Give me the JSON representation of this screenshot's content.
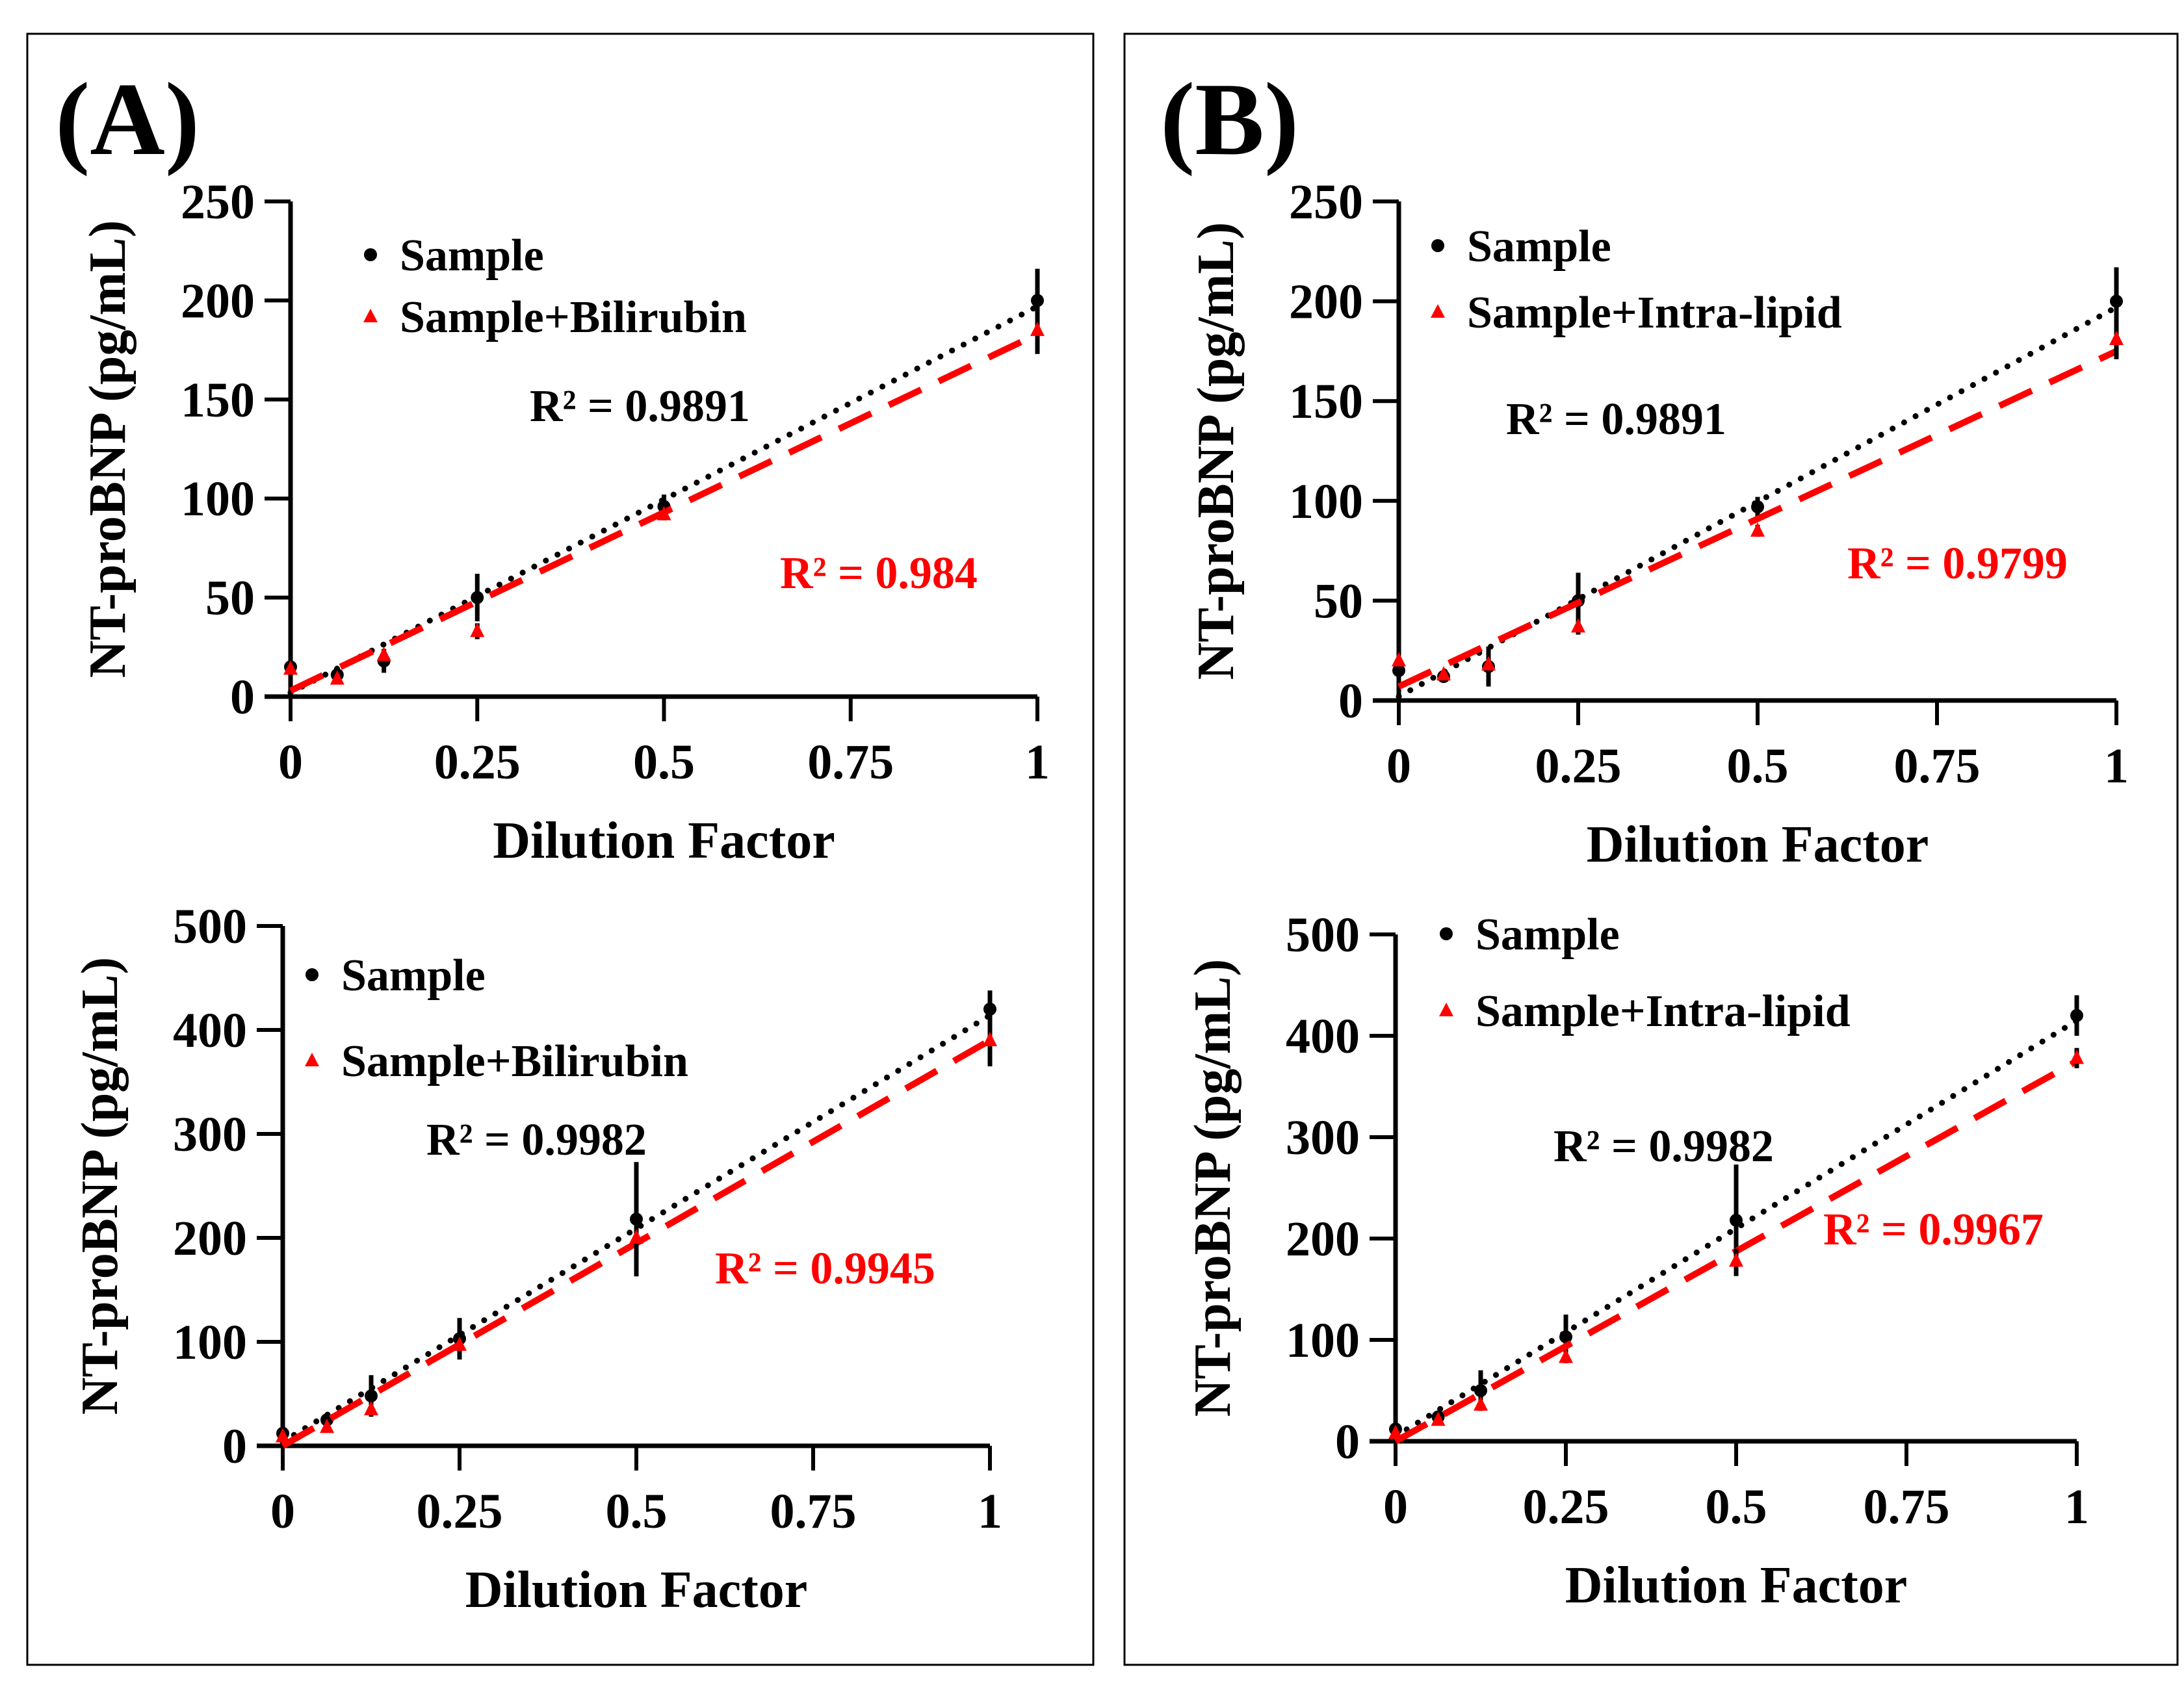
{
  "panels": [
    {
      "label": "(A)"
    },
    {
      "label": "(B)"
    }
  ],
  "colors": {
    "sample": "#000000",
    "spiked": "#ff0000",
    "frame": "#000000"
  },
  "chart_data": [
    {
      "type": "scatter",
      "xlabel": "Dilution Factor",
      "ylabel": "NT-proBNP (pg/mL)",
      "xlim": [
        0,
        1
      ],
      "ylim": [
        0,
        250
      ],
      "xticks": [
        "0",
        "0.25",
        "0.5",
        "0.75",
        "1"
      ],
      "yticks": [
        "0",
        "50",
        "100",
        "150",
        "200",
        "250"
      ],
      "series": [
        {
          "name": "Sample",
          "marker": "circle",
          "color": "#000000",
          "x": [
            0,
            0.0625,
            0.125,
            0.25,
            0.5,
            1
          ],
          "y": [
            15,
            11,
            18,
            50,
            96,
            200
          ],
          "err": [
            4,
            3,
            6,
            12,
            6,
            16
          ],
          "trend": {
            "style": "dotted",
            "slope": 195,
            "intercept": 2,
            "r2": "R² = 0.9891"
          }
        },
        {
          "name": "Sample+Bilirubin",
          "marker": "triangle",
          "color": "#ff0000",
          "x": [
            0,
            0.0625,
            0.125,
            0.25,
            0.5,
            1
          ],
          "y": [
            14,
            9,
            21,
            33,
            92,
            185
          ],
          "err": [
            2,
            2,
            3,
            4,
            3,
            12
          ],
          "trend": {
            "style": "dashed",
            "slope": 180,
            "intercept": 3,
            "r2": "R² = 0.984"
          }
        }
      ]
    },
    {
      "type": "scatter",
      "xlabel": "Dilution Factor",
      "ylabel": "NT-proBNP (pg/mL)",
      "xlim": [
        0,
        1
      ],
      "ylim": [
        0,
        250
      ],
      "xticks": [
        "0",
        "0.25",
        "0.5",
        "0.75",
        "1"
      ],
      "yticks": [
        "0",
        "50",
        "100",
        "150",
        "200",
        "250"
      ],
      "series": [
        {
          "name": "Sample",
          "marker": "circle",
          "color": "#000000",
          "x": [
            0,
            0.0625,
            0.125,
            0.25,
            0.5,
            1
          ],
          "y": [
            15,
            12,
            17,
            50,
            97,
            200
          ],
          "err": [
            3,
            2,
            10,
            14,
            5,
            17
          ],
          "trend": {
            "style": "dotted",
            "slope": 195,
            "intercept": 2,
            "r2": "R² = 0.9891"
          }
        },
        {
          "name": "Sample+Intra-lipid",
          "marker": "triangle",
          "color": "#ff0000",
          "x": [
            0,
            0.0625,
            0.125,
            0.25,
            0.5,
            1
          ],
          "y": [
            20,
            13,
            18,
            37,
            85,
            181
          ],
          "err": [
            2,
            2,
            3,
            4,
            3,
            10
          ],
          "trend": {
            "style": "dashed",
            "slope": 168,
            "intercept": 7,
            "r2": "R² = 0.9799"
          }
        }
      ]
    },
    {
      "type": "scatter",
      "xlabel": "Dilution Factor",
      "ylabel": "NT-proBNP (pg/mL)",
      "xlim": [
        0,
        1
      ],
      "ylim": [
        0,
        500
      ],
      "xticks": [
        "0",
        "0.25",
        "0.5",
        "0.75",
        "1"
      ],
      "yticks": [
        "0",
        "100",
        "200",
        "300",
        "400",
        "500"
      ],
      "series": [
        {
          "name": "Sample",
          "marker": "circle",
          "color": "#000000",
          "x": [
            0,
            0.0625,
            0.125,
            0.25,
            0.5,
            1
          ],
          "y": [
            12,
            25,
            48,
            103,
            218,
            420
          ],
          "err": [
            4,
            5,
            20,
            20,
            55,
            18
          ],
          "trend": {
            "style": "dotted",
            "slope": 410,
            "intercept": 4,
            "r2": "R² = 0.9982"
          }
        },
        {
          "name": "Sample+Bilirubin",
          "marker": "triangle",
          "color": "#ff0000",
          "x": [
            0,
            0.0625,
            0.125,
            0.25,
            0.5,
            1
          ],
          "y": [
            9,
            18,
            35,
            97,
            200,
            390
          ],
          "err": [
            3,
            3,
            5,
            8,
            10,
            25
          ],
          "trend": {
            "style": "dashed",
            "slope": 390,
            "intercept": 0,
            "r2": "R² = 0.9945"
          }
        }
      ]
    },
    {
      "type": "scatter",
      "xlabel": "Dilution Factor",
      "ylabel": "NT-proBNP (pg/mL)",
      "xlim": [
        0,
        1
      ],
      "ylim": [
        0,
        500
      ],
      "xticks": [
        "0",
        "0.25",
        "0.5",
        "0.75",
        "1"
      ],
      "yticks": [
        "0",
        "100",
        "200",
        "300",
        "400",
        "500"
      ],
      "series": [
        {
          "name": "Sample",
          "marker": "circle",
          "color": "#000000",
          "x": [
            0,
            0.0625,
            0.125,
            0.25,
            0.5,
            1
          ],
          "y": [
            12,
            24,
            50,
            103,
            218,
            420
          ],
          "err": [
            4,
            4,
            20,
            22,
            55,
            20
          ],
          "trend": {
            "style": "dotted",
            "slope": 410,
            "intercept": 5,
            "r2": "R² = 0.9982"
          }
        },
        {
          "name": "Sample+Intra-lipid",
          "marker": "triangle",
          "color": "#ff0000",
          "x": [
            0,
            0.0625,
            0.125,
            0.25,
            0.5,
            1
          ],
          "y": [
            8,
            21,
            36,
            83,
            178,
            378
          ],
          "err": [
            3,
            3,
            5,
            6,
            12,
            10
          ],
          "trend": {
            "style": "dashed",
            "slope": 375,
            "intercept": 0,
            "r2": "R² = 0.9967"
          }
        }
      ]
    }
  ]
}
